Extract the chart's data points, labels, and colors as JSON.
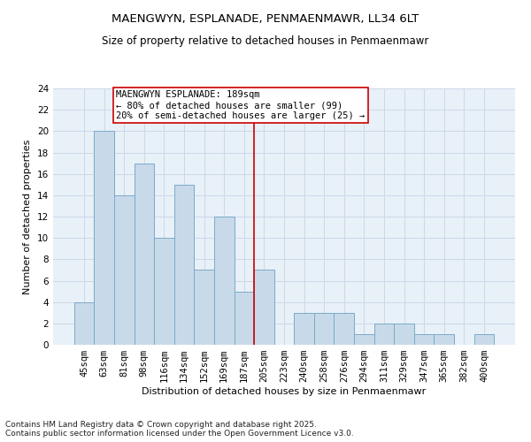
{
  "title1": "MAENGWYN, ESPLANADE, PENMAENMAWR, LL34 6LT",
  "title2": "Size of property relative to detached houses in Penmaenmawr",
  "xlabel": "Distribution of detached houses by size in Penmaenmawr",
  "ylabel": "Number of detached properties",
  "categories": [
    "45sqm",
    "63sqm",
    "81sqm",
    "98sqm",
    "116sqm",
    "134sqm",
    "152sqm",
    "169sqm",
    "187sqm",
    "205sqm",
    "223sqm",
    "240sqm",
    "258sqm",
    "276sqm",
    "294sqm",
    "311sqm",
    "329sqm",
    "347sqm",
    "365sqm",
    "382sqm",
    "400sqm"
  ],
  "values": [
    4,
    20,
    14,
    17,
    10,
    15,
    7,
    12,
    5,
    7,
    0,
    3,
    3,
    3,
    1,
    2,
    2,
    1,
    1,
    0,
    1
  ],
  "bar_color": "#c8daea",
  "bar_edge_color": "#7aaac8",
  "bar_edge_width": 0.7,
  "red_line_x": 8.5,
  "annotation_text": "MAENGWYN ESPLANADE: 189sqm\n← 80% of detached houses are smaller (99)\n20% of semi-detached houses are larger (25) →",
  "annotation_box_color": "#ffffff",
  "annotation_border_color": "#cc0000",
  "red_line_color": "#cc0000",
  "footer": "Contains HM Land Registry data © Crown copyright and database right 2025.\nContains public sector information licensed under the Open Government Licence v3.0.",
  "ylim": [
    0,
    24
  ],
  "yticks": [
    0,
    2,
    4,
    6,
    8,
    10,
    12,
    14,
    16,
    18,
    20,
    22,
    24
  ],
  "grid_color": "#cdd8e8",
  "background_color": "#e8f0f8",
  "fig_background": "#ffffff",
  "title1_fontsize": 9.5,
  "title2_fontsize": 8.5,
  "xlabel_fontsize": 8,
  "ylabel_fontsize": 8,
  "tick_fontsize": 7.5,
  "footer_fontsize": 6.5,
  "annotation_fontsize": 7.5
}
